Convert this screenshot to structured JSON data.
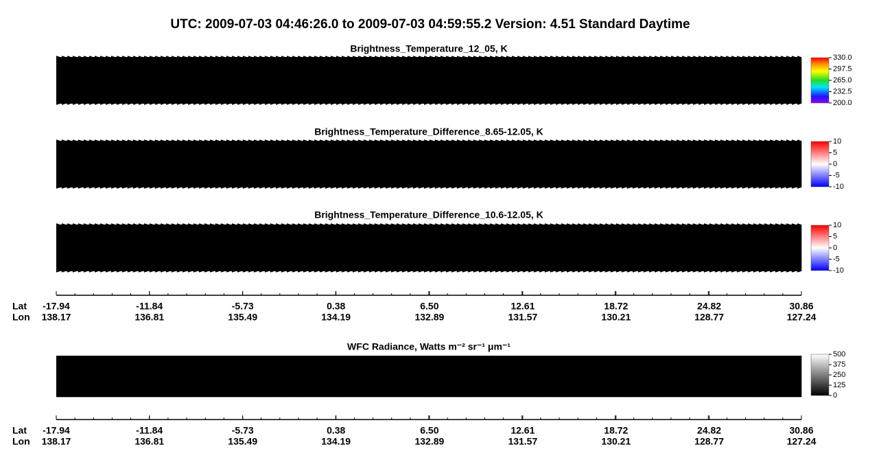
{
  "title": "UTC:  2009-07-03   04:46:26.0  to  2009-07-03   04:59:55.2    Version: 4.51  Standard Daytime",
  "chart_data": [
    {
      "type": "heatmap",
      "title": "Brightness_Temperature_12_05, K",
      "colormap": "rainbow",
      "clim": [
        200,
        330
      ],
      "cticks": [
        {
          "value": 330,
          "label": "330.0"
        },
        297.5,
        {
          "value": 265,
          "label": "265.0"
        },
        232.5,
        {
          "value": 200,
          "label": "200.0"
        }
      ]
    },
    {
      "type": "heatmap",
      "title": "Brightness_Temperature_Difference_8.65-12.05, K",
      "colormap": "bwr",
      "clim": [
        -10,
        10
      ],
      "cticks": [
        10,
        5,
        0,
        -5,
        -10
      ]
    },
    {
      "type": "heatmap",
      "title": "Brightness_Temperature_Difference_10.6-12.05, K",
      "colormap": "bwr",
      "clim": [
        -10,
        10
      ],
      "cticks": [
        10,
        5,
        0,
        -5,
        -10
      ],
      "axis_labels": [
        "Lat",
        "Lon"
      ],
      "lat": [
        -17.94,
        -11.84,
        -5.73,
        0.38,
        {
          "value": 6.5,
          "label": "6.50"
        },
        12.61,
        18.72,
        24.82,
        30.86
      ],
      "lon": [
        138.17,
        136.81,
        135.49,
        134.19,
        132.89,
        131.57,
        130.21,
        128.77,
        127.24
      ]
    },
    {
      "type": "heatmap",
      "title": "WFC Radiance, Watts m⁻² sr⁻¹ μm⁻¹",
      "colormap": "gray",
      "clim": [
        0,
        500
      ],
      "cticks": [
        500,
        375,
        250,
        125,
        0
      ],
      "axis_labels": [
        "Lat",
        "Lon"
      ],
      "lat": [
        -17.94,
        -11.84,
        -5.73,
        0.38,
        {
          "value": 6.5,
          "label": "6.50"
        },
        12.61,
        18.72,
        24.82,
        30.86
      ],
      "lon": [
        138.17,
        136.81,
        135.49,
        134.19,
        132.89,
        131.57,
        130.21,
        128.77,
        127.24
      ]
    }
  ]
}
